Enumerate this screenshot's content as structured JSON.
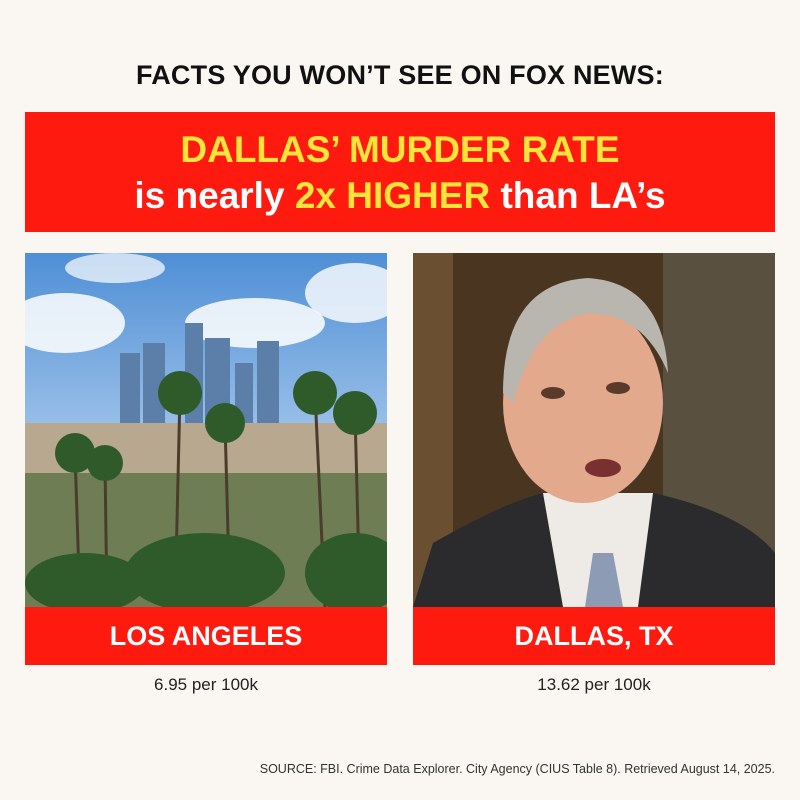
{
  "header": {
    "kicker": "FACTS YOU WON’T SEE ON FOX NEWS:"
  },
  "banner": {
    "line1": "DALLAS’ MURDER RATE",
    "line2_pre": "is nearly ",
    "line2_highlight": "2x HIGHER",
    "line2_post": " than LA’s"
  },
  "cards": [
    {
      "label": "LOS ANGELES",
      "value": "6.95 per 100k",
      "image": "los-angeles-skyline-palm-trees-photo"
    },
    {
      "label": "DALLAS, TX",
      "value": "13.62 per 100k",
      "image": "man-in-suit-portrait-photo"
    }
  ],
  "source": "SOURCE: FBI. Crime Data Explorer. City Agency (CIUS Table 8). Retrieved August 14, 2025.",
  "colors": {
    "red": "#ff1a10",
    "yellow": "#ffe53a",
    "background": "#faf7f3"
  }
}
